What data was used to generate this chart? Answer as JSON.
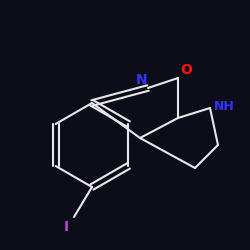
{
  "background_color": "#0d0d1a",
  "bond_color": "#e8e8e8",
  "N_color": "#3333ff",
  "O_color": "#ff1111",
  "I_color": "#bb44cc",
  "NH_color": "#3333ff",
  "bond_width": 1.5,
  "figsize": [
    2.5,
    2.5
  ],
  "dpi": 100,
  "xlim": [
    0,
    250
  ],
  "ylim": [
    0,
    250
  ]
}
